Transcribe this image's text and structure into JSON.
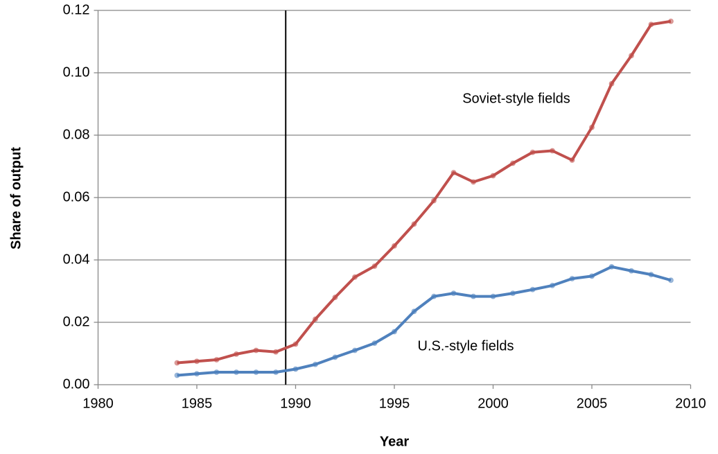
{
  "chart_data": {
    "type": "line",
    "x_label": "Year",
    "y_label": "Share of output",
    "x": [
      1984,
      1985,
      1986,
      1987,
      1988,
      1989,
      1990,
      1991,
      1992,
      1993,
      1994,
      1995,
      1996,
      1997,
      1998,
      1999,
      2000,
      2001,
      2002,
      2003,
      2004,
      2005,
      2006,
      2007,
      2008,
      2009
    ],
    "series": [
      {
        "name": "Soviet-style fields",
        "color": "#c0504d",
        "values": [
          0.007,
          0.0075,
          0.008,
          0.0098,
          0.011,
          0.0105,
          0.013,
          0.021,
          0.028,
          0.0345,
          0.038,
          0.0445,
          0.0515,
          0.059,
          0.068,
          0.065,
          0.067,
          0.071,
          0.0745,
          0.075,
          0.072,
          0.0825,
          0.0965,
          0.1055,
          0.1155,
          0.1165
        ]
      },
      {
        "name": "U.S.-style fields",
        "color": "#4f81bd",
        "values": [
          0.003,
          0.0035,
          0.004,
          0.004,
          0.004,
          0.004,
          0.005,
          0.0065,
          0.0088,
          0.011,
          0.0133,
          0.017,
          0.0235,
          0.0283,
          0.0293,
          0.0283,
          0.0283,
          0.0293,
          0.0305,
          0.0318,
          0.034,
          0.0348,
          0.0378,
          0.0365,
          0.0353,
          0.0335
        ]
      }
    ],
    "xlim": [
      1980,
      2010
    ],
    "xticks": [
      1980,
      1985,
      1990,
      1995,
      2000,
      2005,
      2010
    ],
    "ylim": [
      0,
      0.12
    ],
    "yticks": [
      {
        "value": 0,
        "label": "0.00"
      },
      {
        "value": 0.02,
        "label": "0.02"
      },
      {
        "value": 0.04,
        "label": "0.04"
      },
      {
        "value": 0.06,
        "label": "0.06"
      },
      {
        "value": 0.08,
        "label": "0.08"
      },
      {
        "value": 0.1,
        "label": "0.10"
      },
      {
        "value": 0.12,
        "label": "0.12"
      }
    ],
    "grid": true,
    "vline": 1989.5
  }
}
